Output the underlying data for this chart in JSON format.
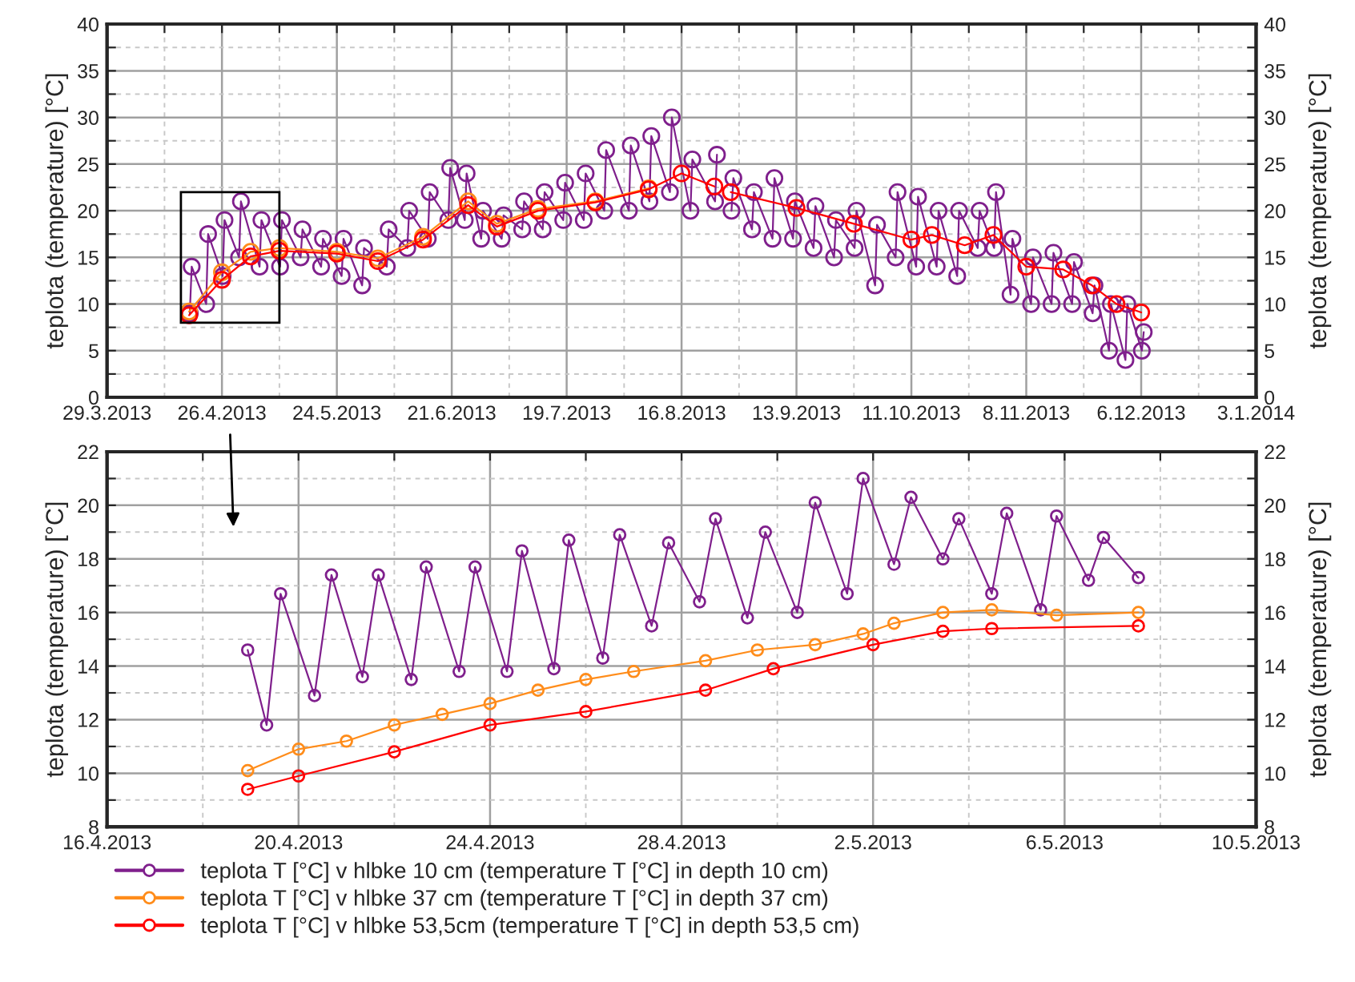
{
  "chart_data": [
    {
      "type": "line",
      "ylabel": "teplota (temperature) [°C]",
      "y2label": "teplota (temperature) [°C]",
      "xlim": [
        "2013-03-29",
        "2014-01-03"
      ],
      "xticks": [
        {
          "value": "2013-03-29",
          "label": "29.3.2013"
        },
        {
          "value": "2013-04-12",
          "label": null
        },
        {
          "value": "2013-04-26",
          "label": "26.4.2013"
        },
        {
          "value": "2013-05-10",
          "label": null
        },
        {
          "value": "2013-05-24",
          "label": "24.5.2013"
        },
        {
          "value": "2013-06-07",
          "label": null
        },
        {
          "value": "2013-06-21",
          "label": "21.6.2013"
        },
        {
          "value": "2013-07-05",
          "label": null
        },
        {
          "value": "2013-07-19",
          "label": "19.7.2013"
        },
        {
          "value": "2013-08-02",
          "label": null
        },
        {
          "value": "2013-08-16",
          "label": "16.8.2013"
        },
        {
          "value": "2013-08-30",
          "label": null
        },
        {
          "value": "2013-09-13",
          "label": "13.9.2013"
        },
        {
          "value": "2013-09-27",
          "label": null
        },
        {
          "value": "2013-10-11",
          "label": "11.10.2013"
        },
        {
          "value": "2013-10-25",
          "label": null
        },
        {
          "value": "2013-11-08",
          "label": "8.11.2013"
        },
        {
          "value": "2013-11-22",
          "label": null
        },
        {
          "value": "2013-12-06",
          "label": "6.12.2013"
        },
        {
          "value": "2013-12-20",
          "label": null
        },
        {
          "value": "2014-01-03",
          "label": "3.1.2014"
        }
      ],
      "ylim": [
        0,
        40
      ],
      "yticks": [
        0,
        {
          "value": 2.5,
          "label": null
        },
        5,
        {
          "value": 7.5,
          "label": null
        },
        10,
        {
          "value": 12.5,
          "label": null
        },
        15,
        {
          "value": 17.5,
          "label": null
        },
        20,
        {
          "value": 22.5,
          "label": null
        },
        25,
        {
          "value": 27.5,
          "label": null
        },
        30,
        {
          "value": 32.5,
          "label": null
        },
        35,
        {
          "value": 37.5,
          "label": null
        },
        40
      ],
      "y2lim": [
        0,
        40
      ],
      "y2ticks": [
        0,
        {
          "value": 2.5,
          "label": null
        },
        5,
        {
          "value": 7.5,
          "label": null
        },
        10,
        {
          "value": 12.5,
          "label": null
        },
        15,
        {
          "value": 17.5,
          "label": null
        },
        20,
        {
          "value": 22.5,
          "label": null
        },
        25,
        {
          "value": 27.5,
          "label": null
        },
        30,
        {
          "value": 32.5,
          "label": null
        },
        35,
        {
          "value": 37.5,
          "label": null
        },
        40
      ],
      "grid": true,
      "marker": "circle",
      "line_style": "solid",
      "series": [
        {
          "color": "#7f1f8c",
          "x": [
            "2013-04-18T04:00",
            "2013-04-18T15:00",
            "2013-04-22T04:00",
            "2013-04-22T15:00",
            "2013-04-26T04:00",
            "2013-04-26T15:00",
            "2013-04-30T04:00",
            "2013-04-30T15:00",
            "2013-05-05T04:00",
            "2013-05-05T15:00",
            "2013-05-10T04:00",
            "2013-05-10T15:00",
            "2013-05-15T04:00",
            "2013-05-15T15:00",
            "2013-05-20T04:00",
            "2013-05-20T15:00",
            "2013-05-25T04:00",
            "2013-05-25T15:00",
            "2013-05-30T04:00",
            "2013-05-30T15:00",
            "2013-06-05T04:00",
            "2013-06-05T15:00",
            "2013-06-10T04:00",
            "2013-06-10T15:00",
            "2013-06-15T04:00",
            "2013-06-15T15:00",
            "2013-06-20T04:00",
            "2013-06-20T15:00",
            "2013-06-24T04:00",
            "2013-06-24T15:00",
            "2013-06-28T04:00",
            "2013-06-28T15:00",
            "2013-07-03T04:00",
            "2013-07-03T15:00",
            "2013-07-08T04:00",
            "2013-07-08T15:00",
            "2013-07-13T04:00",
            "2013-07-13T15:00",
            "2013-07-18T04:00",
            "2013-07-18T15:00",
            "2013-07-23T04:00",
            "2013-07-23T15:00",
            "2013-07-28T04:00",
            "2013-07-28T15:00",
            "2013-08-03T04:00",
            "2013-08-03T15:00",
            "2013-08-08T04:00",
            "2013-08-08T15:00",
            "2013-08-13T04:00",
            "2013-08-13T15:00",
            "2013-08-18T04:00",
            "2013-08-18T15:00",
            "2013-08-24T04:00",
            "2013-08-24T15:00",
            "2013-08-26T12:00",
            "2013-08-28T04:00",
            "2013-08-28T15:00",
            "2013-09-02T04:00",
            "2013-09-02T15:00",
            "2013-09-07T04:00",
            "2013-09-07T15:00",
            "2013-09-12T04:00",
            "2013-09-12T15:00",
            "2013-09-17T04:00",
            "2013-09-17T15:00",
            "2013-09-22T04:00",
            "2013-09-22T15:00",
            "2013-09-27T04:00",
            "2013-09-27T15:00",
            "2013-10-02T04:00",
            "2013-10-02T15:00",
            "2013-10-07T04:00",
            "2013-10-07T15:00",
            "2013-10-12T04:00",
            "2013-10-12T15:00",
            "2013-10-17T04:00",
            "2013-10-17T15:00",
            "2013-10-22T04:00",
            "2013-10-22T15:00",
            "2013-10-27T04:00",
            "2013-10-27T15:00",
            "2013-10-31T04:00",
            "2013-10-31T15:00",
            "2013-11-04T04:00",
            "2013-11-04T15:00",
            "2013-11-09T04:00",
            "2013-11-09T15:00",
            "2013-11-14T04:00",
            "2013-11-14T15:00",
            "2013-11-19T04:00",
            "2013-11-19T15:00",
            "2013-11-24T04:00",
            "2013-11-24T15:00",
            "2013-11-28T04:00",
            "2013-11-28T15:00",
            "2013-12-02T04:00",
            "2013-12-02T15:00",
            "2013-12-06T04:00",
            "2013-12-06T15:00"
          ],
          "values": [
            9,
            14,
            10,
            17.5,
            13,
            19,
            15,
            21,
            14,
            19,
            14,
            19,
            15,
            18,
            14,
            17,
            13,
            17,
            12,
            16,
            14,
            18,
            16,
            20,
            17,
            22,
            19,
            24.6,
            19,
            24,
            17,
            20,
            17,
            19.5,
            18,
            21,
            18,
            22,
            19,
            23,
            19,
            24,
            20,
            26.5,
            20,
            27,
            21,
            28,
            22,
            30,
            20,
            25.5,
            21,
            26,
            null,
            20,
            23.5,
            18,
            22,
            17,
            23.5,
            17,
            21,
            16,
            20.5,
            15,
            19,
            16,
            20,
            12,
            18.5,
            15,
            22,
            14,
            21.5,
            14,
            20,
            13,
            20,
            16,
            20,
            16,
            22,
            11,
            17,
            10,
            15,
            10,
            15.5,
            10,
            14.5,
            9,
            12,
            5,
            10,
            4,
            10,
            5,
            7
          ]
        },
        {
          "color": "#ff8c1a",
          "x": [
            "2013-04-18",
            "2013-04-26",
            "2013-05-03",
            "2013-05-10",
            "2013-05-24",
            "2013-06-03",
            "2013-06-14",
            "2013-06-25",
            "2013-07-02",
            "2013-07-12",
            "2013-07-26",
            "2013-08-08"
          ],
          "values": [
            9.2,
            13.4,
            15.6,
            16.0,
            15.6,
            14.9,
            17.2,
            21.0,
            18.6,
            20.2,
            21.0,
            22.4
          ]
        },
        {
          "color": "#ff0000",
          "x": [
            "2013-04-18",
            "2013-04-26",
            "2013-05-03",
            "2013-05-10",
            "2013-05-24",
            "2013-06-03",
            "2013-06-14",
            "2013-06-25",
            "2013-07-02",
            "2013-07-12",
            "2013-07-26",
            "2013-08-08",
            "2013-08-16",
            "2013-08-24",
            "2013-08-26",
            "2013-08-28",
            "2013-09-13",
            "2013-09-27",
            "2013-10-11",
            "2013-10-16",
            "2013-10-24",
            "2013-10-31",
            "2013-11-08",
            "2013-11-17",
            "2013-11-24",
            "2013-11-30",
            "2013-12-06"
          ],
          "values": [
            8.8,
            12.6,
            15.1,
            15.7,
            15.4,
            14.6,
            16.9,
            20.6,
            18.3,
            20.0,
            20.9,
            22.3,
            24.0,
            22.6,
            null,
            22.0,
            20.3,
            18.6,
            16.9,
            17.4,
            16.3,
            17.4,
            14.0,
            13.7,
            12.0,
            10.0,
            9.1
          ]
        }
      ]
    },
    {
      "type": "line",
      "ylabel": "teplota (temperature) [°C]",
      "y2label": "teplota (temperature) [°C]",
      "xlim": [
        "2013-04-16",
        "2013-05-10"
      ],
      "xticks": [
        {
          "value": "2013-04-16",
          "label": "16.4.2013"
        },
        {
          "value": "2013-04-18",
          "label": null
        },
        {
          "value": "2013-04-20",
          "label": "20.4.2013"
        },
        {
          "value": "2013-04-22",
          "label": null
        },
        {
          "value": "2013-04-24",
          "label": "24.4.2013"
        },
        {
          "value": "2013-04-26",
          "label": null
        },
        {
          "value": "2013-04-28",
          "label": "28.4.2013"
        },
        {
          "value": "2013-04-30",
          "label": null
        },
        {
          "value": "2013-05-02",
          "label": "2.5.2013"
        },
        {
          "value": "2013-05-04",
          "label": null
        },
        {
          "value": "2013-05-06",
          "label": "6.5.2013"
        },
        {
          "value": "2013-05-08",
          "label": null
        },
        {
          "value": "2013-05-10",
          "label": "10.5.2013"
        }
      ],
      "ylim": [
        8,
        22
      ],
      "yticks": [
        8,
        {
          "value": 9,
          "label": null
        },
        10,
        {
          "value": 11,
          "label": null
        },
        12,
        {
          "value": 13,
          "label": null
        },
        14,
        {
          "value": 15,
          "label": null
        },
        16,
        {
          "value": 17,
          "label": null
        },
        18,
        {
          "value": 19,
          "label": null
        },
        20,
        {
          "value": 21,
          "label": null
        },
        22
      ],
      "y2lim": [
        8,
        22
      ],
      "y2ticks": [
        8,
        {
          "value": 9,
          "label": null
        },
        10,
        {
          "value": 11,
          "label": null
        },
        12,
        {
          "value": 13,
          "label": null
        },
        14,
        {
          "value": 15,
          "label": null
        },
        16,
        {
          "value": 17,
          "label": null
        },
        18,
        {
          "value": 19,
          "label": null
        },
        20,
        {
          "value": 21,
          "label": null
        },
        22
      ],
      "grid": true,
      "marker": "circle",
      "line_style": "solid",
      "legend": "bottom",
      "series": [
        {
          "name": "teplota T [°C] v hlbke 10 cm (temperature T [°C] in depth 10 cm)",
          "color": "#7f1f8c",
          "x": [
            "2013-04-18T22:30",
            "2013-04-19T08:00",
            "2013-04-19T15:00",
            "2013-04-20T08:00",
            "2013-04-20T16:30",
            "2013-04-21T08:00",
            "2013-04-21T16:00",
            "2013-04-22T08:30",
            "2013-04-22T16:00",
            "2013-04-23T08:30",
            "2013-04-23T16:30",
            "2013-04-24T08:30",
            "2013-04-24T16:00",
            "2013-04-25T08:00",
            "2013-04-25T15:30",
            "2013-04-26T08:30",
            "2013-04-26T17:00",
            "2013-04-27T09:00",
            "2013-04-27T17:30",
            "2013-04-28T09:00",
            "2013-04-28T17:00",
            "2013-04-29T09:00",
            "2013-04-29T18:00",
            "2013-04-30T10:00",
            "2013-04-30T19:00",
            "2013-05-01T11:00",
            "2013-05-01T19:00",
            "2013-05-02T10:30",
            "2013-05-02T19:00",
            "2013-05-03T11:00",
            "2013-05-03T19:00",
            "2013-05-04T11:30",
            "2013-05-04T19:00",
            "2013-05-05T12:00",
            "2013-05-05T20:00",
            "2013-05-06T12:00",
            "2013-05-06T19:30",
            "2013-05-07T13:00"
          ],
          "values": [
            14.6,
            11.8,
            16.7,
            12.9,
            17.4,
            13.6,
            17.4,
            13.5,
            17.7,
            13.8,
            17.7,
            13.8,
            18.3,
            13.9,
            18.7,
            14.3,
            18.9,
            15.5,
            18.6,
            16.4,
            19.5,
            15.8,
            19.0,
            16.0,
            20.1,
            16.7,
            21.0,
            17.8,
            20.3,
            18.0,
            19.5,
            16.7,
            19.7,
            16.1,
            19.6,
            17.2,
            18.8,
            17.3
          ]
        },
        {
          "name": "teplota T [°C] v hlbke 37 cm (temperature T [°C] in depth 37 cm)",
          "color": "#ff8c1a",
          "x": [
            "2013-04-18T22:30",
            "2013-04-20T00:00",
            "2013-04-21T00:00",
            "2013-04-22T00:00",
            "2013-04-23T00:00",
            "2013-04-24T00:00",
            "2013-04-25T00:00",
            "2013-04-26T00:00",
            "2013-04-27T00:00",
            "2013-04-28T12:00",
            "2013-04-29T14:00",
            "2013-04-30T19:00",
            "2013-05-01T19:00",
            "2013-05-02T10:30",
            "2013-05-03T11:00",
            "2013-05-04T11:30",
            "2013-05-05T20:00",
            "2013-05-07T13:00"
          ],
          "values": [
            10.1,
            10.9,
            11.2,
            11.8,
            12.2,
            12.6,
            13.1,
            13.5,
            13.8,
            14.2,
            14.6,
            14.8,
            15.2,
            15.6,
            16.0,
            16.1,
            15.9,
            16.0
          ]
        },
        {
          "name": "teplota T [°C] v hlbke 53,5cm (temperature T [°C] in depth 53,5 cm)",
          "color": "#ff0000",
          "x": [
            "2013-04-18T22:30",
            "2013-04-20T00:00",
            "2013-04-22T00:00",
            "2013-04-24T00:00",
            "2013-04-26T00:00",
            "2013-04-28T12:00",
            "2013-04-29T22:00",
            "2013-05-02T00:00",
            "2013-05-03T11:00",
            "2013-05-04T11:30",
            "2013-05-07T13:00"
          ],
          "values": [
            9.4,
            9.9,
            10.8,
            11.8,
            12.3,
            13.1,
            13.9,
            14.8,
            15.3,
            15.4,
            15.5
          ]
        }
      ]
    }
  ]
}
